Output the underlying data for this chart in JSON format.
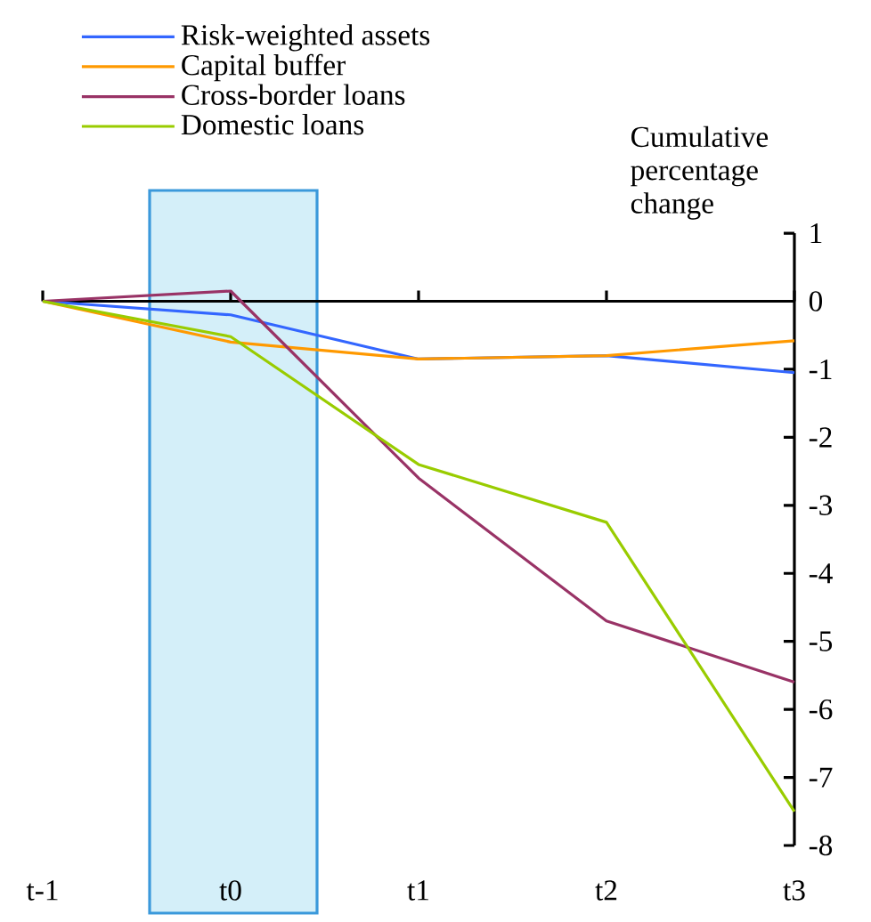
{
  "chart_data": {
    "type": "line",
    "ylabel": "Cumulative percentage change",
    "categories": [
      "t-1",
      "t0",
      "t1",
      "t2",
      "t3"
    ],
    "series": [
      {
        "name": "Risk-weighted assets",
        "color": "#3366ff",
        "values": [
          0,
          -0.2,
          -0.85,
          -0.8,
          -1.05
        ]
      },
      {
        "name": "Capital buffer",
        "color": "#ff9900",
        "values": [
          0,
          -0.6,
          -0.85,
          -0.8,
          -0.58
        ]
      },
      {
        "name": "Cross-border loans",
        "color": "#993366",
        "values": [
          0,
          0.15,
          -2.6,
          -4.7,
          -5.6
        ]
      },
      {
        "name": "Domestic loans",
        "color": "#99cc00",
        "values": [
          0,
          -0.52,
          -2.4,
          -3.25,
          -7.5
        ]
      }
    ],
    "ylim": [
      -8,
      1
    ],
    "yticks": [
      1,
      0,
      -1,
      -2,
      -3,
      -4,
      -5,
      -6,
      -7,
      -8
    ],
    "legend": "top left",
    "marker": "none",
    "line_style": "solid"
  }
}
